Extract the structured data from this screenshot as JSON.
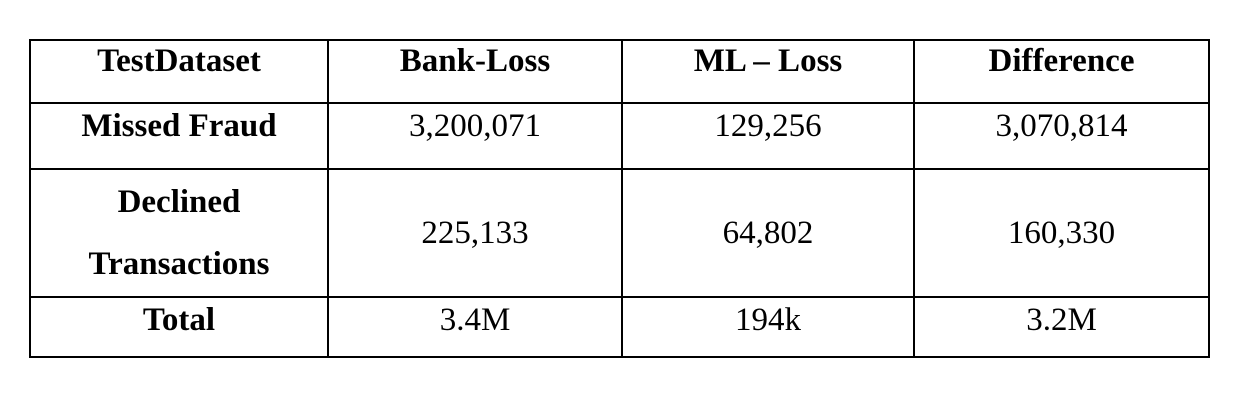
{
  "table": {
    "columns": [
      "TestDataset",
      "Bank-Loss",
      "ML – Loss",
      "Difference"
    ],
    "rows": [
      {
        "label_lines": [
          "Missed Fraud"
        ],
        "bank_loss": "3,200,071",
        "ml_loss": "129,256",
        "difference": "3,070,814"
      },
      {
        "label_lines": [
          "Declined",
          "Transactions"
        ],
        "bank_loss": "225,133",
        "ml_loss": "64,802",
        "difference": "160,330"
      },
      {
        "label_lines": [
          "Total"
        ],
        "bank_loss": "3.4M",
        "ml_loss": "194k",
        "difference": "3.2M"
      }
    ]
  }
}
